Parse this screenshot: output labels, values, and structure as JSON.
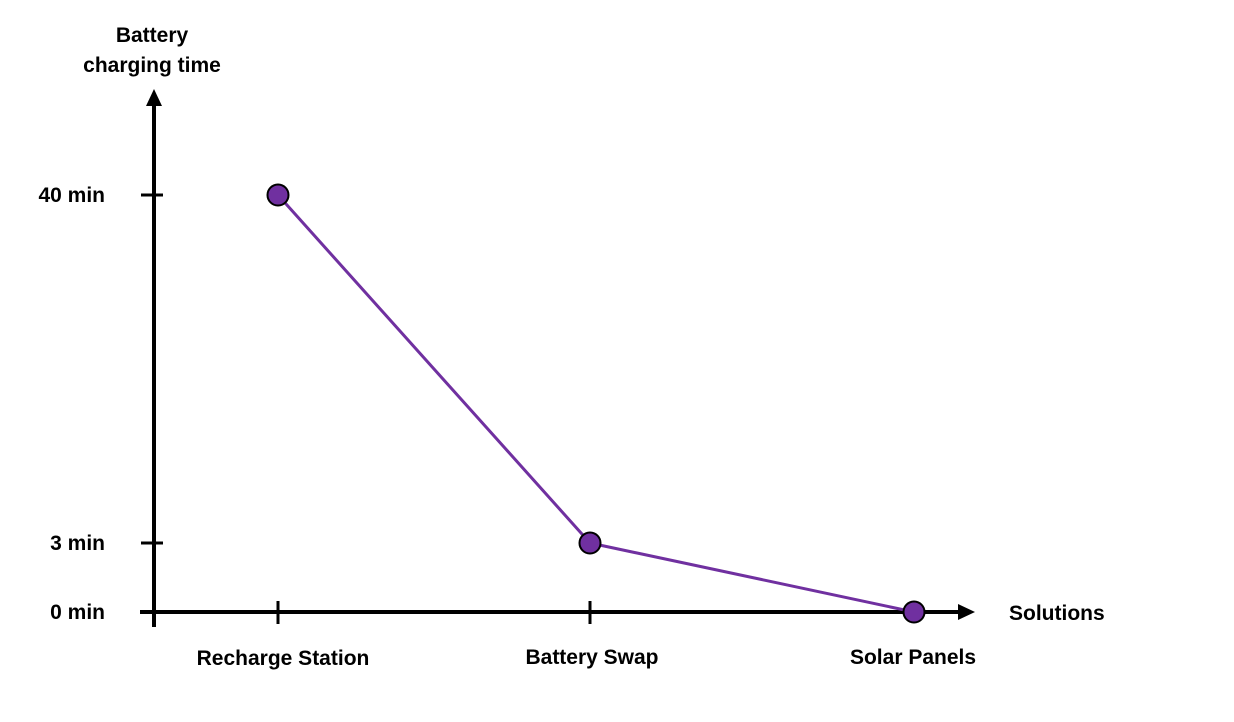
{
  "chart_data": {
    "type": "line",
    "title": "",
    "ylabel_lines": [
      "Battery",
      "charging time"
    ],
    "xlabel": "Solutions",
    "categories": [
      "Recharge Station",
      "Battery Swap",
      "Solar Panels"
    ],
    "values": [
      40,
      3,
      0
    ],
    "yticks": [
      {
        "value": 0,
        "label": "0 min"
      },
      {
        "value": 3,
        "label": "3 min"
      },
      {
        "value": 40,
        "label": "40 min"
      }
    ],
    "grid": false,
    "legend": "none",
    "colors": {
      "line": "#7030a0",
      "marker": "#7030a0",
      "axis": "#000000"
    }
  }
}
